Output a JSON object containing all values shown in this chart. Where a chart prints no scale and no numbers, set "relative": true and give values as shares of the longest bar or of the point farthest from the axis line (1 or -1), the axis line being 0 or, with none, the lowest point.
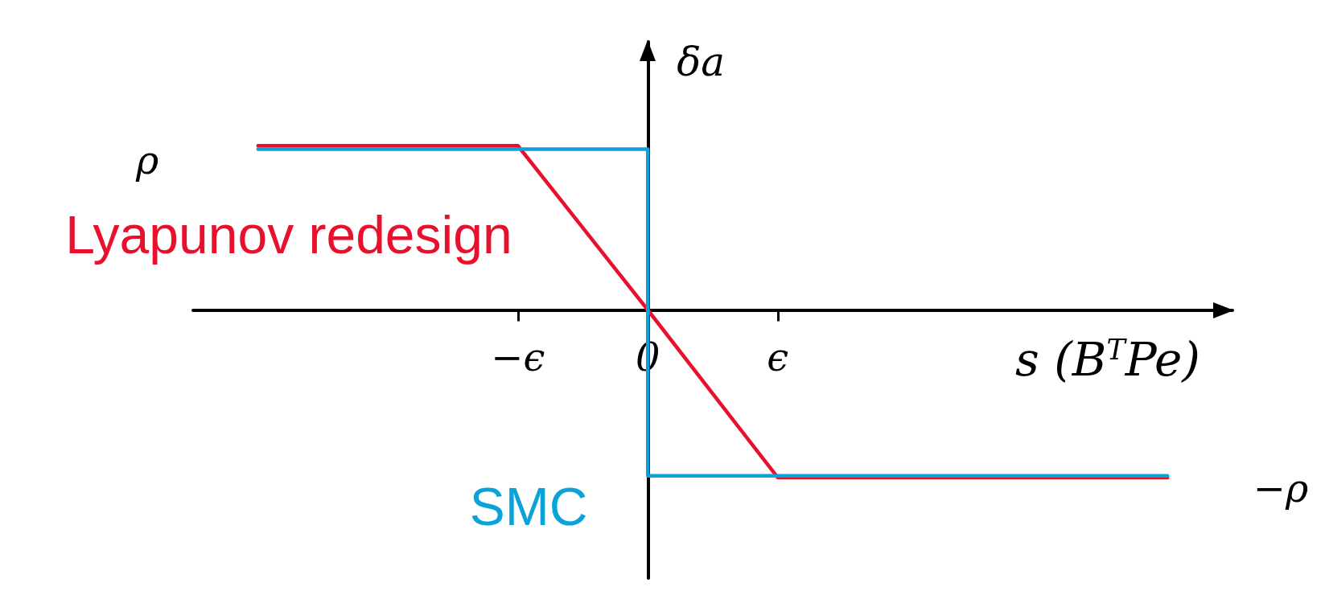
{
  "chart_data": {
    "type": "line",
    "relative": true,
    "xlabel": "s (B$^{T}$Pe)",
    "ylabel": "δa",
    "categories": [
      null,
      null,
      "−ϵ",
      "0",
      "ϵ",
      null,
      null,
      null
    ],
    "annotations": [
      "ρ",
      "−ρ"
    ],
    "series": [
      {
        "name": "Lyapunov redesign",
        "color": "#e8112d",
        "values": [
          0.98,
          0.98,
          0.98,
          0,
          -1,
          -1,
          -1,
          -1
        ]
      },
      {
        "name": "SMC",
        "type": "step",
        "color": "#0aa2d8",
        "values": [
          0.96,
          0.96,
          0.96,
          0.96,
          -0.99,
          -0.99,
          -0.99,
          -0.99
        ]
      }
    ],
    "legend": false,
    "marker": "none",
    "line_style": "solid"
  }
}
